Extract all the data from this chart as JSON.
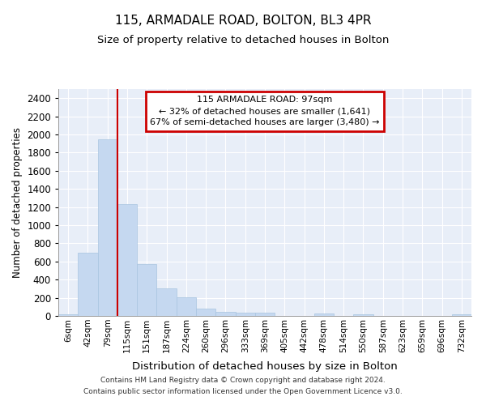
{
  "title": "115, ARMADALE ROAD, BOLTON, BL3 4PR",
  "subtitle": "Size of property relative to detached houses in Bolton",
  "xlabel": "Distribution of detached houses by size in Bolton",
  "ylabel": "Number of detached properties",
  "bar_color": "#c5d8f0",
  "bar_edge_color": "#a8c4e0",
  "background_color": "#ffffff",
  "axes_bg_color": "#e8eef8",
  "grid_color": "#ffffff",
  "annotation_box_color": "#cc0000",
  "property_line_color": "#cc0000",
  "annotation_text": "115 ARMADALE ROAD: 97sqm\n← 32% of detached houses are smaller (1,641)\n67% of semi-detached houses are larger (3,480) →",
  "footnote1": "Contains HM Land Registry data © Crown copyright and database right 2024.",
  "footnote2": "Contains public sector information licensed under the Open Government Licence v3.0.",
  "bin_labels": [
    "6sqm",
    "42sqm",
    "79sqm",
    "115sqm",
    "151sqm",
    "187sqm",
    "224sqm",
    "260sqm",
    "296sqm",
    "333sqm",
    "369sqm",
    "405sqm",
    "442sqm",
    "478sqm",
    "514sqm",
    "550sqm",
    "587sqm",
    "623sqm",
    "659sqm",
    "696sqm",
    "732sqm"
  ],
  "bin_values": [
    20,
    700,
    1950,
    1230,
    575,
    305,
    205,
    80,
    47,
    38,
    38,
    0,
    0,
    28,
    0,
    20,
    0,
    0,
    0,
    0,
    20
  ],
  "property_line_x": 2.5,
  "ylim": [
    0,
    2500
  ],
  "yticks": [
    0,
    200,
    400,
    600,
    800,
    1000,
    1200,
    1400,
    1600,
    1800,
    2000,
    2200,
    2400
  ],
  "figsize": [
    6.0,
    5.0
  ],
  "dpi": 100
}
